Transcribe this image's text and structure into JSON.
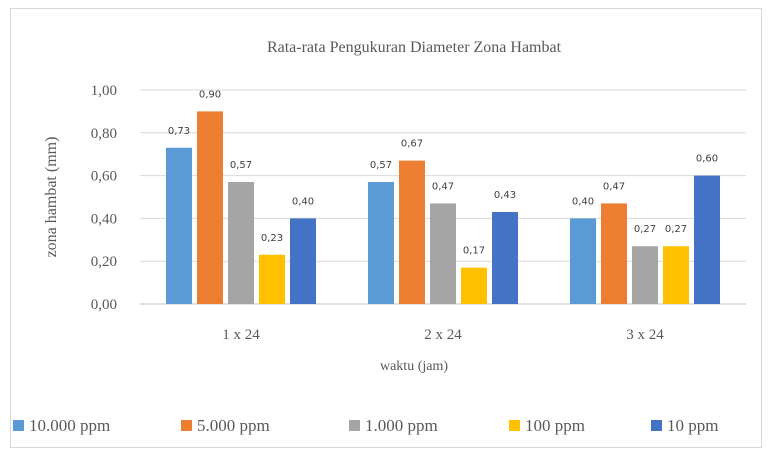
{
  "chart_data": {
    "type": "bar",
    "title": "Rata-rata Pengukuran Diameter Zona Hambat",
    "xlabel": "waktu (jam)",
    "ylabel": "zona hambat (mm)",
    "ylim": [
      0,
      1
    ],
    "yticks": [
      "0,00",
      "0,20",
      "0,40",
      "0,60",
      "0,80",
      "1,00"
    ],
    "categories": [
      "1 x 24",
      "2 x 24",
      "3 x 24"
    ],
    "grid": true,
    "legend_position": "bottom",
    "series": [
      {
        "name": "10.000 ppm",
        "color": "#5B9BD5",
        "values": [
          0.73,
          0.57,
          0.4
        ],
        "labels": [
          "0,73",
          "0,57",
          "0,40"
        ]
      },
      {
        "name": "5.000 ppm",
        "color": "#ED7D31",
        "values": [
          0.9,
          0.67,
          0.47
        ],
        "labels": [
          "0,90",
          "0,67",
          "0,47"
        ]
      },
      {
        "name": "1.000 ppm",
        "color": "#A5A5A5",
        "values": [
          0.57,
          0.47,
          0.27
        ],
        "labels": [
          "0,57",
          "0,47",
          "0,27"
        ]
      },
      {
        "name": "100 ppm",
        "color": "#FFC000",
        "values": [
          0.23,
          0.17,
          0.27
        ],
        "labels": [
          "0,23",
          "0,17",
          "0,27"
        ]
      },
      {
        "name": "10 ppm",
        "color": "#4472C4",
        "values": [
          0.4,
          0.43,
          0.6
        ],
        "labels": [
          "0,40",
          "0,43",
          "0,60"
        ]
      }
    ]
  }
}
